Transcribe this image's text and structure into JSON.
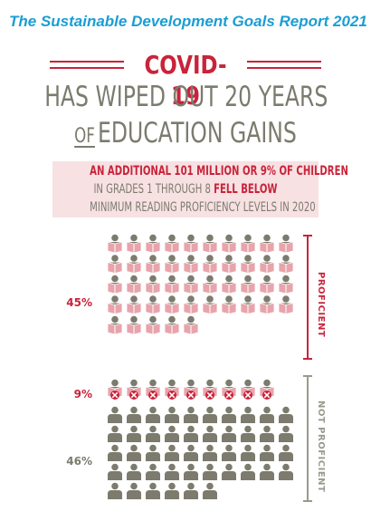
{
  "report_title": "The Sustainable Development Goals Report 2021",
  "headline": {
    "covid": "COVID-19",
    "line1": "HAS WIPED OUT 20 YEARS",
    "line2_of": "OF",
    "line2_rest": "EDUCATION GAINS"
  },
  "callout": {
    "line1": "AN ADDITIONAL 101 MILLION OR 9% OF CHILDREN",
    "line2_pre": "IN GRADES 1 THROUGH 8 ",
    "line2_highlight": "FELL BELOW",
    "line3": "MINIMUM READING PROFICIENCY LEVELS IN 2020"
  },
  "groups": {
    "proficient": {
      "percent_label": "45%",
      "label": "PROFICIENT",
      "icon_count": 45,
      "icon": "reading-child-icon"
    },
    "fell_below": {
      "percent_label": "9%",
      "icon_count": 9,
      "icon": "child-crossed-book-icon"
    },
    "not_proficient": {
      "percent_label": "46%",
      "label": "NOT PROFICIENT",
      "icon_count": 46,
      "icon": "child-icon"
    }
  },
  "colors": {
    "title_blue": "#1a9ed4",
    "accent_red": "#c8243a",
    "gray": "#7c7b6e",
    "book_pink": "#e8a4ab",
    "callout_bg": "#f7e1e3"
  }
}
